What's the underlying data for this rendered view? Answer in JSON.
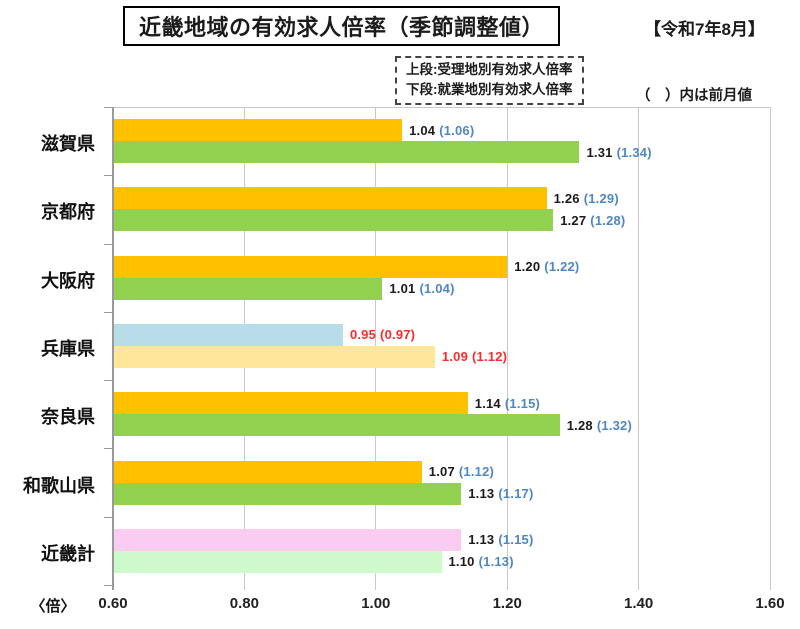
{
  "header": {
    "title": "近畿地域の有効求人倍率（季節調整値）",
    "period": "【令和7年8月】"
  },
  "legend": {
    "upper": "上段:受理地別有効求人倍率",
    "lower": "下段:就業地別有効求人倍率",
    "note": "（　）内は前月値"
  },
  "chart_data": {
    "type": "bar",
    "orientation": "horizontal",
    "unit_label": "〈倍〉",
    "xlim": [
      0.6,
      1.6
    ],
    "x_ticks": [
      "0.60",
      "0.80",
      "1.00",
      "1.20",
      "1.40",
      "1.60"
    ],
    "grid": true,
    "series_meaning": [
      "上段=受理地別有効求人倍率",
      "下段=就業地別有効求人倍率"
    ],
    "note": "（　）内は前月値",
    "colors": {
      "accepted_default": "#FFC000",
      "employment_default": "#92D050",
      "hyogo_accepted": "#B8DCE8",
      "hyogo_employment": "#FFE699",
      "kinki_accepted": "#FBCCF2",
      "kinki_employment": "#CDF9CD",
      "value_text": "#1b1b1b",
      "prev_text_blue": "#4F87C5",
      "alert_text_red": "#FF2B2B",
      "gridline": "#C8C8C8",
      "axis": "#9A9A9A"
    },
    "rows": [
      {
        "category": "滋賀県",
        "bars": [
          {
            "series": "受理地別",
            "value": 1.04,
            "prev": 1.06,
            "value_label": "1.04",
            "prev_label": "(1.06)",
            "fill": "#FFC000",
            "value_color": "#1b1b1b",
            "prev_color": "#4F87C5"
          },
          {
            "series": "就業地別",
            "value": 1.31,
            "prev": 1.34,
            "value_label": "1.31",
            "prev_label": "(1.34)",
            "fill": "#92D050",
            "value_color": "#1b1b1b",
            "prev_color": "#4F87C5"
          }
        ]
      },
      {
        "category": "京都府",
        "bars": [
          {
            "series": "受理地別",
            "value": 1.26,
            "prev": 1.29,
            "value_label": "1.26",
            "prev_label": "(1.29)",
            "fill": "#FFC000",
            "value_color": "#1b1b1b",
            "prev_color": "#4F87C5"
          },
          {
            "series": "就業地別",
            "value": 1.27,
            "prev": 1.28,
            "value_label": "1.27",
            "prev_label": "(1.28)",
            "fill": "#92D050",
            "value_color": "#1b1b1b",
            "prev_color": "#4F87C5"
          }
        ]
      },
      {
        "category": "大阪府",
        "bars": [
          {
            "series": "受理地別",
            "value": 1.2,
            "prev": 1.22,
            "value_label": "1.20",
            "prev_label": "(1.22)",
            "fill": "#FFC000",
            "value_color": "#1b1b1b",
            "prev_color": "#4F87C5"
          },
          {
            "series": "就業地別",
            "value": 1.01,
            "prev": 1.04,
            "value_label": "1.01",
            "prev_label": "(1.04)",
            "fill": "#92D050",
            "value_color": "#1b1b1b",
            "prev_color": "#4F87C5"
          }
        ]
      },
      {
        "category": "兵庫県",
        "bars": [
          {
            "series": "受理地別",
            "value": 0.95,
            "prev": 0.97,
            "value_label": "0.95",
            "prev_label": "(0.97)",
            "fill": "#B8DCE8",
            "value_color": "#FF2B2B",
            "prev_color": "#FF2B2B"
          },
          {
            "series": "就業地別",
            "value": 1.09,
            "prev": 1.12,
            "value_label": "1.09",
            "prev_label": "(1.12)",
            "fill": "#FFE699",
            "value_color": "#FF2B2B",
            "prev_color": "#FF2B2B"
          }
        ]
      },
      {
        "category": "奈良県",
        "bars": [
          {
            "series": "受理地別",
            "value": 1.14,
            "prev": 1.15,
            "value_label": "1.14",
            "prev_label": "(1.15)",
            "fill": "#FFC000",
            "value_color": "#1b1b1b",
            "prev_color": "#4F87C5"
          },
          {
            "series": "就業地別",
            "value": 1.28,
            "prev": 1.32,
            "value_label": "1.28",
            "prev_label": "(1.32)",
            "fill": "#92D050",
            "value_color": "#1b1b1b",
            "prev_color": "#4F87C5"
          }
        ]
      },
      {
        "category": "和歌山県",
        "bars": [
          {
            "series": "受理地別",
            "value": 1.07,
            "prev": 1.12,
            "value_label": "1.07",
            "prev_label": "(1.12)",
            "fill": "#FFC000",
            "value_color": "#1b1b1b",
            "prev_color": "#4F87C5"
          },
          {
            "series": "就業地別",
            "value": 1.13,
            "prev": 1.17,
            "value_label": "1.13",
            "prev_label": "(1.17)",
            "fill": "#92D050",
            "value_color": "#1b1b1b",
            "prev_color": "#4F87C5"
          }
        ]
      },
      {
        "category": "近畿計",
        "bars": [
          {
            "series": "受理地別",
            "value": 1.13,
            "prev": 1.15,
            "value_label": "1.13",
            "prev_label": "(1.15)",
            "fill": "#FBCCF2",
            "value_color": "#1b1b1b",
            "prev_color": "#4F87C5"
          },
          {
            "series": "就業地別",
            "value": 1.1,
            "prev": 1.13,
            "value_label": "1.10",
            "prev_label": "(1.13)",
            "fill": "#CDF9CD",
            "value_color": "#1b1b1b",
            "prev_color": "#4F87C5"
          }
        ]
      }
    ]
  }
}
